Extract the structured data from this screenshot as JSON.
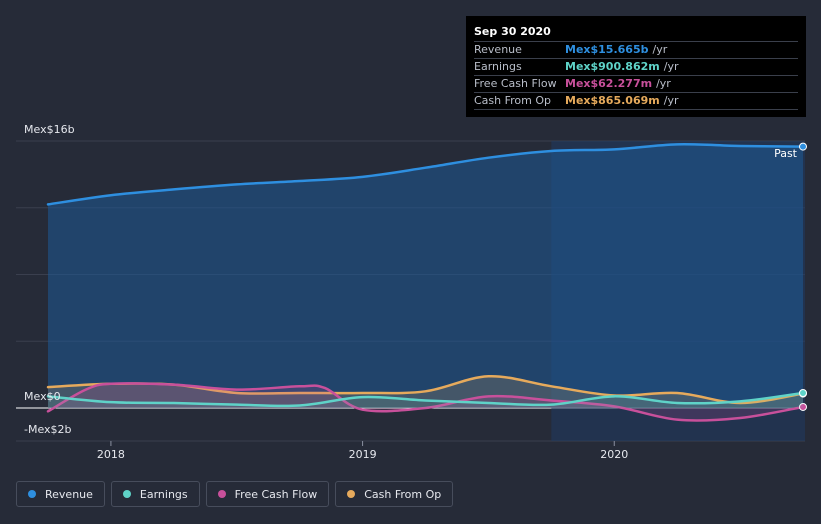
{
  "tooltip": {
    "date": "Sep 30 2020",
    "rows": [
      {
        "name": "Revenue",
        "value": "Mex$15.665b",
        "unit": "/yr",
        "color": "#2e8fe0"
      },
      {
        "name": "Earnings",
        "value": "Mex$900.862m",
        "unit": "/yr",
        "color": "#5fd3c8"
      },
      {
        "name": "Free Cash Flow",
        "value": "Mex$62.277m",
        "unit": "/yr",
        "color": "#c8509b"
      },
      {
        "name": "Cash From Op",
        "value": "Mex$865.069m",
        "unit": "/yr",
        "color": "#e6aa5c"
      }
    ]
  },
  "chart_data": {
    "type": "area",
    "ylabels": {
      "top": "Mex$16b",
      "zero": "Mex$0",
      "bottom": "-Mex$2b"
    },
    "ylim": [
      -2,
      16
    ],
    "xlim": [
      2017.75,
      2020.75
    ],
    "xticks": [
      {
        "label": "2018",
        "x": 2018.0
      },
      {
        "label": "2019",
        "x": 2019.0
      },
      {
        "label": "2020",
        "x": 2020.0
      }
    ],
    "past_label": "Past",
    "past_start": 2019.75,
    "series": [
      {
        "name": "Revenue",
        "color": "#2e8fe0",
        "x": [
          2017.75,
          2018.0,
          2018.25,
          2018.5,
          2018.75,
          2019.0,
          2019.25,
          2019.5,
          2019.75,
          2020.0,
          2020.25,
          2020.5,
          2020.75
        ],
        "y": [
          12.2,
          12.75,
          13.1,
          13.4,
          13.6,
          13.85,
          14.4,
          15.0,
          15.4,
          15.5,
          15.8,
          15.7,
          15.665
        ]
      },
      {
        "name": "Earnings",
        "color": "#5fd3c8",
        "x": [
          2017.75,
          2018.0,
          2018.25,
          2018.5,
          2018.75,
          2019.0,
          2019.25,
          2019.5,
          2019.75,
          2020.0,
          2020.25,
          2020.5,
          2020.75
        ],
        "y": [
          0.7,
          0.35,
          0.3,
          0.2,
          0.15,
          0.65,
          0.45,
          0.3,
          0.2,
          0.7,
          0.3,
          0.4,
          0.901
        ]
      },
      {
        "name": "Free Cash Flow",
        "color": "#c8509b",
        "x": [
          2017.75,
          2017.9,
          2018.0,
          2018.25,
          2018.5,
          2018.75,
          2018.85,
          2019.0,
          2019.25,
          2019.5,
          2019.75,
          2020.0,
          2020.25,
          2020.5,
          2020.75
        ],
        "y": [
          -0.2,
          1.1,
          1.45,
          1.4,
          1.1,
          1.3,
          1.2,
          -0.1,
          0.0,
          0.7,
          0.45,
          0.1,
          -0.7,
          -0.6,
          0.062
        ]
      },
      {
        "name": "Cash From Op",
        "color": "#e6aa5c",
        "x": [
          2017.75,
          2018.0,
          2018.25,
          2018.5,
          2018.75,
          2019.0,
          2019.25,
          2019.5,
          2019.75,
          2020.0,
          2020.25,
          2020.5,
          2020.75
        ],
        "y": [
          1.25,
          1.45,
          1.4,
          0.9,
          0.9,
          0.9,
          1.0,
          1.9,
          1.3,
          0.75,
          0.9,
          0.3,
          0.865
        ]
      }
    ]
  },
  "legend": [
    {
      "label": "Revenue",
      "color": "#2e8fe0"
    },
    {
      "label": "Earnings",
      "color": "#5fd3c8"
    },
    {
      "label": "Free Cash Flow",
      "color": "#c8509b"
    },
    {
      "label": "Cash From Op",
      "color": "#e6aa5c"
    }
  ]
}
